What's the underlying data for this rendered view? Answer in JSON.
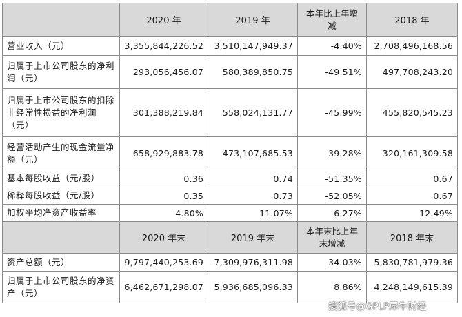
{
  "header1": [
    "2020 年",
    "2019 年",
    "本年比上年增减",
    "2018 年"
  ],
  "rows1": [
    {
      "label": "营业收入（元）",
      "v2020": "3,355,844,226.52",
      "v2019": "3,510,147,949.37",
      "change": "-4.40%",
      "v2018": "2,708,496,168.56"
    },
    {
      "label": "归属于上市公司股东的净利润（元）",
      "v2020": "293,056,456.07",
      "v2019": "580,389,850.75",
      "change": "-49.51%",
      "v2018": "497,708,243.20"
    },
    {
      "label": "归属于上市公司股东的扣除非经常性损益的净利润（元）",
      "v2020": "301,388,219.84",
      "v2019": "558,024,131.77",
      "change": "-45.99%",
      "v2018": "455,820,545.23"
    },
    {
      "label": "经营活动产生的现金流量净额（元）",
      "v2020": "658,929,883.78",
      "v2019": "473,107,685.53",
      "change": "39.28%",
      "v2018": "320,161,309.58"
    },
    {
      "label": "基本每股收益（元/股）",
      "v2020": "0.36",
      "v2019": "0.74",
      "change": "-51.35%",
      "v2018": "0.67"
    },
    {
      "label": "稀释每股收益（元/股）",
      "v2020": "0.35",
      "v2019": "0.73",
      "change": "-52.05%",
      "v2018": "0.67"
    },
    {
      "label": "加权平均净资产收益率",
      "v2020": "4.80%",
      "v2019": "11.07%",
      "change": "-6.27%",
      "v2018": "12.49%"
    }
  ],
  "header2": [
    "2020 年末",
    "2019 年末",
    "本年末比上年末增减",
    "2018 年末"
  ],
  "rows2": [
    {
      "label": "资产总额（元）",
      "v2020": "9,797,440,253.69",
      "v2019": "7,309,976,311.98",
      "change": "34.03%",
      "v2018": "5,830,781,979.36"
    },
    {
      "label": "归属于上市公司股东的净资产（元）",
      "v2020": "6,462,671,298.07",
      "v2019": "5,936,685,096.33",
      "change": "8.86%",
      "v2018": "4,248,149,615.39"
    }
  ],
  "watermark": "搜狐号@GPLP犀牛财经"
}
